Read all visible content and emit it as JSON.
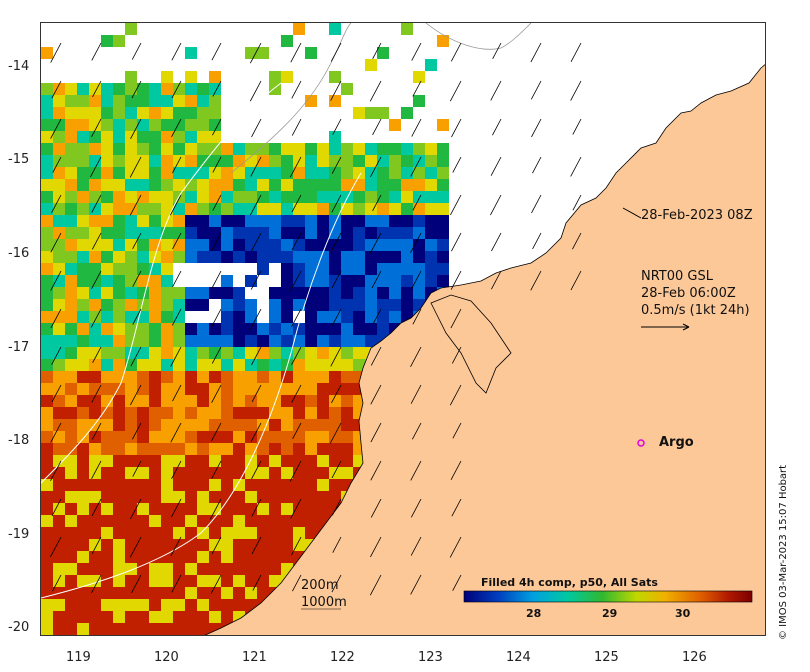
{
  "map": {
    "x_axis": {
      "ticks": [
        "119",
        "120",
        "121",
        "122",
        "123",
        "124",
        "125",
        "126"
      ]
    },
    "y_axis": {
      "ticks": [
        "-14",
        "-15",
        "-16",
        "-17",
        "-18",
        "-19",
        "-20"
      ]
    },
    "land_color": "#fdc898",
    "ocean_no_data_color": "#ffffff"
  },
  "annotations": {
    "timestamp": "28-Feb-2023 08Z",
    "current_source": "NRT00 GSL",
    "current_time": "28-Feb 06:00Z",
    "scale_label": "0.5m/s (1kt 24h)",
    "argo_label": "Argo",
    "argo_color": "#e000e0",
    "contour_200": "200m",
    "contour_1000": "1000m"
  },
  "colorbar": {
    "title": "Filled 4h comp, p50, All Sats",
    "tick_labels": [
      "28",
      "29",
      "30"
    ],
    "colors": [
      "#00007a",
      "#0033b0",
      "#0070d8",
      "#00b0e8",
      "#00c8a0",
      "#20b840",
      "#80c820",
      "#e0d800",
      "#f8a000",
      "#e06000",
      "#c02000",
      "#7a0000"
    ]
  },
  "credit": "© IMOS 03-Mar-2023 15:07 Hobart"
}
